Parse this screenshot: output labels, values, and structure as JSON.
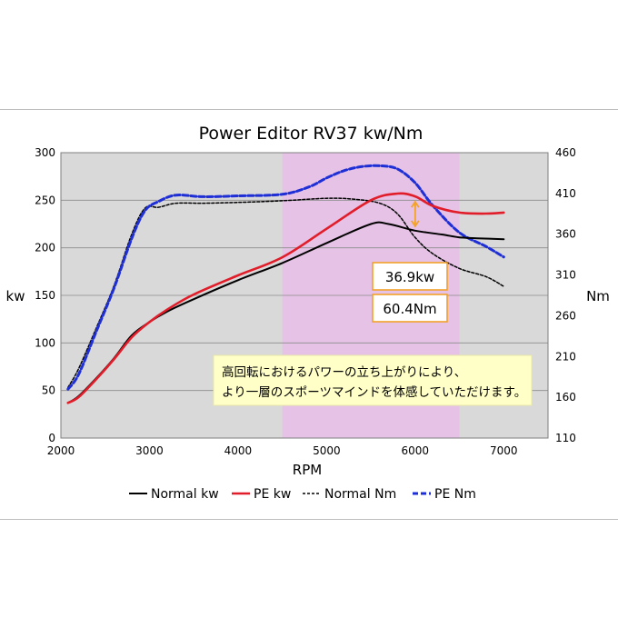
{
  "chart_data": {
    "type": "line",
    "title": "Power Editor RV37 kw/Nm",
    "xlabel": "RPM",
    "ylabel_left": "kw",
    "ylabel_right": "Nm",
    "xlim": [
      2000,
      7500
    ],
    "ylim_left": [
      0,
      300
    ],
    "ylim_right": [
      110,
      460
    ],
    "x_ticks": [
      "2000",
      "3000",
      "4000",
      "5000",
      "6000",
      "7000"
    ],
    "y_ticks_left": [
      "0",
      "50",
      "100",
      "150",
      "200",
      "250",
      "300"
    ],
    "y_ticks_right": [
      "110",
      "160",
      "210",
      "260",
      "310",
      "360",
      "410",
      "460"
    ],
    "grid": true,
    "legend_position": "bottom",
    "highlight_band": {
      "x_range": [
        4500,
        6500
      ],
      "color": "#e6c3e6"
    },
    "plot_bg": "#d9d9d9",
    "series": [
      {
        "name": "Normal kw",
        "axis": "left",
        "color": "#000000",
        "style": "solid",
        "x": [
          2080,
          2200,
          2400,
          2600,
          2800,
          3000,
          3200,
          3500,
          4000,
          4500,
          5000,
          5500,
          5700,
          6000,
          6300,
          6500,
          6700,
          7000
        ],
        "y": [
          37,
          44,
          63,
          84,
          108,
          122,
          133,
          146,
          166,
          184,
          205,
          225,
          225,
          218,
          214,
          211,
          210,
          209
        ]
      },
      {
        "name": "PE kw",
        "axis": "left",
        "color": "#e11d2a",
        "style": "solid",
        "x": [
          2080,
          2200,
          2400,
          2600,
          2800,
          3000,
          3200,
          3500,
          4000,
          4500,
          5000,
          5500,
          5800,
          6000,
          6200,
          6500,
          6800,
          7000
        ],
        "y": [
          37,
          43,
          62,
          83,
          106,
          122,
          135,
          151,
          171,
          190,
          220,
          250,
          257,
          254,
          244,
          237,
          236,
          237
        ]
      },
      {
        "name": "Normal Nm",
        "axis": "right",
        "color": "#000000",
        "style": "dotted",
        "x": [
          2080,
          2200,
          2400,
          2600,
          2800,
          2950,
          3100,
          3300,
          3600,
          4000,
          4500,
          5000,
          5300,
          5600,
          5800,
          6000,
          6200,
          6500,
          6800,
          7000
        ],
        "y": [
          172,
          195,
          245,
          297,
          360,
          392,
          393,
          398,
          398,
          399,
          401,
          404,
          403,
          398,
          385,
          356,
          336,
          318,
          308,
          296
        ]
      },
      {
        "name": "PE Nm",
        "axis": "right",
        "color": "#1f2fd6",
        "style": "dashed",
        "x": [
          2080,
          2200,
          2400,
          2600,
          2800,
          2950,
          3100,
          3300,
          3600,
          4000,
          4500,
          4800,
          5000,
          5200,
          5400,
          5600,
          5800,
          6000,
          6200,
          6500,
          6800,
          7000
        ],
        "y": [
          170,
          188,
          241,
          294,
          355,
          389,
          400,
          408,
          406,
          407,
          409,
          418,
          429,
          438,
          443,
          444,
          440,
          423,
          395,
          362,
          345,
          332
        ]
      }
    ],
    "annotations": [
      {
        "text": "36.9kw",
        "x": 6000
      },
      {
        "text": "60.4Nm",
        "x": 6000
      },
      {
        "lines": [
          "高回転におけるパワーの立ち上がりにより、",
          "より一層のスポーツマインドを体感していただけます。"
        ]
      }
    ]
  }
}
